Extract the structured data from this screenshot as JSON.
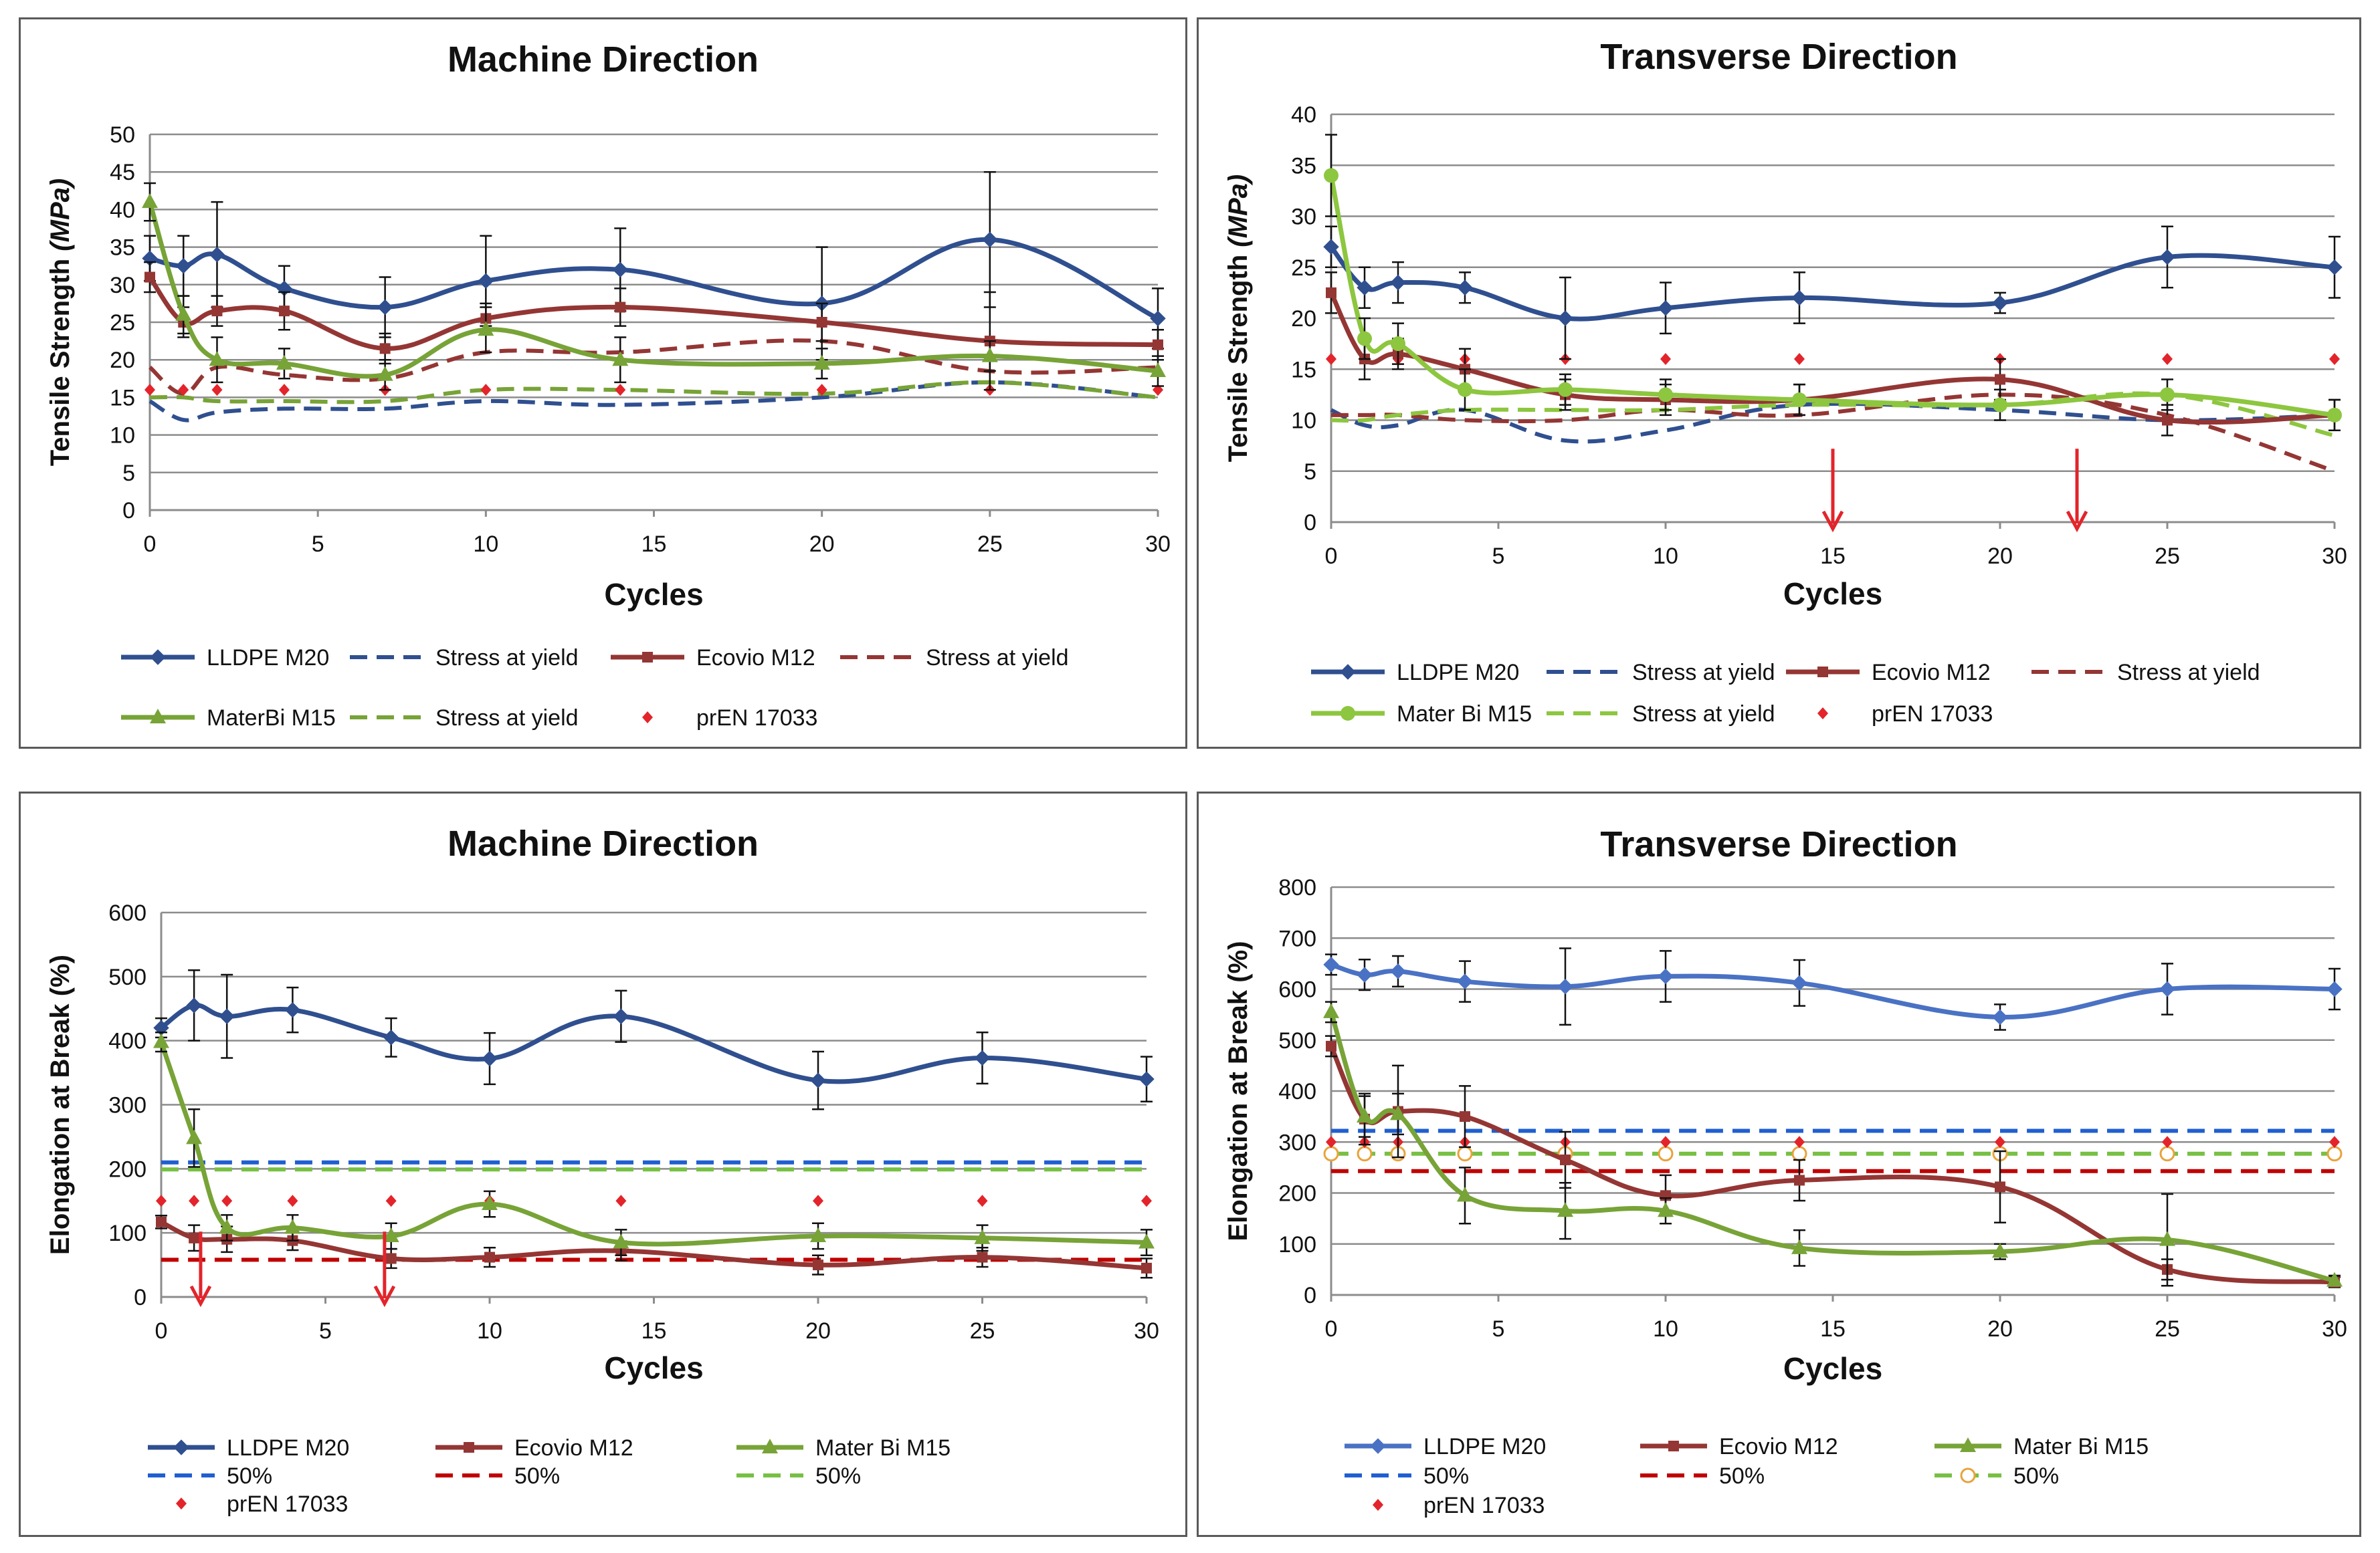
{
  "chart_data": [
    {
      "type": "line",
      "title": "Machine Direction",
      "xlabel": "Cycles",
      "ylabel": "Tensile Strength (MPa)",
      "ylabel_parts": [
        "Tensile Strength ",
        "(MPa)"
      ],
      "x": [
        0,
        1,
        2,
        4,
        7,
        10,
        14,
        20,
        25,
        30
      ],
      "xlim": [
        0,
        30
      ],
      "xticks": [
        "0",
        "5",
        "10",
        "15",
        "20",
        "25",
        "30"
      ],
      "ylim": [
        0,
        50
      ],
      "yticks": [
        "0",
        "5",
        "10",
        "15",
        "20",
        "25",
        "30",
        "35",
        "40",
        "45",
        "50"
      ],
      "grid": true,
      "series": [
        {
          "name": "LLDPE  M20",
          "color": "#2f4f8f",
          "style": "solid",
          "marker": "diamond",
          "values": [
            33.5,
            32.5,
            34,
            29.5,
            27,
            30.5,
            32,
            27.5,
            36,
            25.5
          ],
          "errors": [
            3,
            4,
            7,
            3,
            4,
            6,
            5.5,
            7.5,
            9,
            4
          ]
        },
        {
          "name": "Stress at yield",
          "color": "#2f4f8f",
          "style": "dashed",
          "marker": "none",
          "values": [
            14.5,
            12,
            13,
            13.5,
            13.5,
            14.5,
            14,
            15,
            17,
            15
          ]
        },
        {
          "name": "Ecovio M12",
          "color": "#943634",
          "style": "solid",
          "marker": "square",
          "values": [
            31,
            25,
            26.5,
            26.5,
            21.5,
            25.5,
            27,
            25,
            22.5,
            22
          ],
          "errors": [
            2,
            2,
            2,
            2.5,
            2,
            2,
            2.5,
            2.5,
            6.5,
            2
          ]
        },
        {
          "name": "Stress at yield",
          "color": "#943634",
          "style": "dashed",
          "marker": "none",
          "values": [
            19,
            15.5,
            19,
            18,
            17.5,
            21,
            21,
            22.5,
            18.5,
            19
          ]
        },
        {
          "name": "MaterBi M15",
          "color": "#77a337",
          "style": "solid",
          "marker": "triangle",
          "values": [
            41,
            26,
            20,
            19.5,
            18,
            24,
            20,
            19.5,
            20.5,
            18.5
          ],
          "errors": [
            2.5,
            2.5,
            3,
            2,
            2,
            3,
            3,
            2,
            2,
            2
          ]
        },
        {
          "name": "Stress at yield",
          "color": "#77a337",
          "style": "dashed",
          "marker": "none",
          "values": [
            15,
            15,
            14.5,
            14.5,
            14.5,
            16,
            16,
            15.5,
            17,
            15
          ]
        },
        {
          "name": "prEN 17033",
          "color": "#e3242b",
          "style": "points",
          "marker": "small-diamond",
          "values": [
            16,
            16,
            16,
            16,
            16,
            16,
            16,
            16,
            16,
            16
          ]
        }
      ],
      "arrows_at_x": [],
      "legend_rows": [
        [
          0,
          1,
          2,
          3
        ],
        [
          4,
          5,
          6
        ]
      ]
    },
    {
      "type": "line",
      "title": "Transverse Direction",
      "xlabel": "Cycles",
      "ylabel": "Tensile Strength (MPa)",
      "ylabel_parts": [
        "Tensile Strength ",
        "(MPa)"
      ],
      "x": [
        0,
        1,
        2,
        4,
        7,
        10,
        14,
        20,
        25,
        30
      ],
      "xlim": [
        0,
        30
      ],
      "xticks": [
        "0",
        "5",
        "10",
        "15",
        "20",
        "25",
        "30"
      ],
      "ylim": [
        0,
        40
      ],
      "yticks": [
        "0",
        "5",
        "10",
        "15",
        "20",
        "25",
        "30",
        "35",
        "40"
      ],
      "grid": true,
      "series": [
        {
          "name": "LLDPE  M20",
          "color": "#2f4f8f",
          "style": "solid",
          "marker": "diamond",
          "values": [
            27,
            23,
            23.5,
            23,
            20,
            21,
            22,
            21.5,
            26,
            25
          ],
          "errors": [
            2,
            2,
            2,
            1.5,
            4,
            2.5,
            2.5,
            1,
            3,
            3
          ]
        },
        {
          "name": "Stress at yield",
          "color": "#2f4f8f",
          "style": "dashed",
          "marker": "none",
          "values": [
            11,
            9.5,
            9.5,
            11,
            8,
            9,
            11.5,
            11,
            10,
            10.5
          ]
        },
        {
          "name": "Ecovio M12",
          "color": "#943634",
          "style": "solid",
          "marker": "square",
          "values": [
            22.5,
            16,
            16.5,
            15,
            12.5,
            12,
            12,
            14,
            10,
            10.5
          ],
          "errors": [
            2,
            2,
            1.5,
            2,
            1.5,
            1.5,
            1.5,
            2,
            1.5,
            1.5
          ]
        },
        {
          "name": "Stress at yield",
          "color": "#943634",
          "style": "dashed",
          "marker": "none",
          "values": [
            10.5,
            10.5,
            10.5,
            10,
            10,
            11,
            10.5,
            12.5,
            10.5,
            5
          ]
        },
        {
          "name": "Mater Bi M15",
          "color": "#8dc63f",
          "style": "solid",
          "marker": "circle",
          "values": [
            34,
            18,
            17.5,
            13,
            13,
            12.5,
            12,
            11.5,
            12.5,
            10.5
          ],
          "errors": [
            4,
            2,
            2,
            2,
            1.5,
            1.5,
            1.5,
            1.5,
            1.5,
            1.5
          ]
        },
        {
          "name": "Stress at yield",
          "color": "#8dc63f",
          "style": "dashed",
          "marker": "none",
          "values": [
            10,
            10,
            10.5,
            11,
            11,
            11,
            11.5,
            11.5,
            12.5,
            8.5
          ]
        },
        {
          "name": "prEN 17033",
          "color": "#e3242b",
          "style": "points",
          "marker": "small-diamond",
          "values": [
            16,
            16,
            16,
            16,
            16,
            16,
            16,
            16,
            16,
            16
          ]
        }
      ],
      "arrows_at_x": [
        15,
        22.3
      ],
      "legend_rows": [
        [
          0,
          1,
          2,
          3
        ],
        [
          4,
          5,
          6
        ]
      ]
    },
    {
      "type": "line",
      "title": "Machine Direction",
      "xlabel": "Cycles",
      "ylabel": "Elongation at Break (%)",
      "ylabel_parts": [
        "Elongation at Break (%)"
      ],
      "x": [
        0,
        1,
        2,
        4,
        7,
        10,
        14,
        20,
        25,
        30
      ],
      "xlim": [
        0,
        30
      ],
      "xticks": [
        "0",
        "5",
        "10",
        "15",
        "20",
        "25",
        "30"
      ],
      "ylim": [
        0,
        600
      ],
      "yticks": [
        "0",
        "100",
        "200",
        "300",
        "400",
        "500",
        "600"
      ],
      "grid": true,
      "series": [
        {
          "name": "LLDPE  M20",
          "color": "#2f4f8f",
          "style": "solid",
          "marker": "diamond",
          "values": [
            420,
            455,
            438,
            448,
            405,
            372,
            438,
            338,
            373,
            340
          ],
          "errors": [
            15,
            55,
            65,
            35,
            30,
            40,
            40,
            45,
            40,
            35
          ]
        },
        {
          "name": "Ecovio M12",
          "color": "#943634",
          "style": "solid",
          "marker": "square",
          "values": [
            117,
            92,
            90,
            88,
            60,
            62,
            72,
            50,
            62,
            45
          ],
          "errors": [
            10,
            20,
            20,
            15,
            15,
            15,
            15,
            15,
            15,
            15
          ]
        },
        {
          "name": "Mater Bi M15",
          "color": "#77a337",
          "style": "solid",
          "marker": "triangle",
          "values": [
            398,
            248,
            108,
            108,
            95,
            145,
            85,
            95,
            92,
            85
          ],
          "errors": [
            15,
            45,
            20,
            20,
            20,
            20,
            20,
            20,
            20,
            20
          ]
        },
        {
          "name": "50%",
          "color": "#1f5fd1",
          "style": "dashed",
          "marker": "none",
          "values": [
            210,
            210,
            210,
            210,
            210,
            210,
            210,
            210,
            210,
            210
          ]
        },
        {
          "name": "50%",
          "color": "#c00000",
          "style": "dashed",
          "marker": "none",
          "values": [
            58,
            58,
            58,
            58,
            58,
            58,
            58,
            58,
            58,
            58
          ]
        },
        {
          "name": "50%",
          "color": "#77c043",
          "style": "dashed",
          "marker": "none",
          "values": [
            199,
            199,
            199,
            199,
            199,
            199,
            199,
            199,
            199,
            199
          ]
        },
        {
          "name": "prEN 17033",
          "color": "#e3242b",
          "style": "points",
          "marker": "small-diamond",
          "values": [
            150,
            150,
            150,
            150,
            150,
            150,
            150,
            150,
            150,
            150
          ]
        }
      ],
      "arrows_at_x": [
        1.2,
        6.8
      ],
      "legend_rows": [
        [
          0,
          1,
          2
        ],
        [
          3,
          4,
          5
        ],
        [
          6
        ]
      ]
    },
    {
      "type": "line",
      "title": "Transverse Direction",
      "xlabel": "Cycles",
      "ylabel": "Elongation at Break (%)",
      "ylabel_parts": [
        "Elongation at Break (%)"
      ],
      "x": [
        0,
        1,
        2,
        4,
        7,
        10,
        14,
        20,
        25,
        30
      ],
      "xlim": [
        0,
        30
      ],
      "xticks": [
        "0",
        "5",
        "10",
        "15",
        "20",
        "25",
        "30"
      ],
      "ylim": [
        0,
        800
      ],
      "yticks": [
        "0",
        "100",
        "200",
        "300",
        "400",
        "500",
        "600",
        "700",
        "800"
      ],
      "grid": true,
      "series": [
        {
          "name": "LLDPE  M20",
          "color": "#4a72c4",
          "style": "solid",
          "marker": "diamond",
          "values": [
            648,
            628,
            635,
            615,
            605,
            625,
            612,
            545,
            600,
            600
          ],
          "errors": [
            20,
            30,
            30,
            40,
            75,
            50,
            45,
            25,
            50,
            40
          ]
        },
        {
          "name": "Ecovio M12",
          "color": "#943634",
          "style": "solid",
          "marker": "square",
          "values": [
            488,
            345,
            360,
            350,
            265,
            195,
            225,
            212,
            50,
            25
          ],
          "errors": [
            20,
            50,
            90,
            60,
            55,
            40,
            40,
            70,
            20,
            10
          ]
        },
        {
          "name": "Mater Bi M15",
          "color": "#77a337",
          "style": "solid",
          "marker": "triangle",
          "values": [
            555,
            350,
            355,
            195,
            165,
            165,
            92,
            85,
            108,
            28
          ],
          "errors": [
            20,
            40,
            40,
            55,
            55,
            25,
            35,
            15,
            90,
            10
          ]
        },
        {
          "name": "50%",
          "color": "#1f5fd1",
          "style": "dashed",
          "marker": "none",
          "values": [
            322,
            322,
            322,
            322,
            322,
            322,
            322,
            322,
            322,
            322
          ]
        },
        {
          "name": "50%",
          "color": "#c00000",
          "style": "dashed",
          "marker": "none",
          "values": [
            243,
            243,
            243,
            243,
            243,
            243,
            243,
            243,
            243,
            243
          ]
        },
        {
          "name": "50%",
          "color": "#77c043",
          "style": "dashed",
          "marker": "open-circle",
          "values": [
            277,
            277,
            277,
            277,
            277,
            277,
            277,
            277,
            277,
            277
          ]
        },
        {
          "name": "prEN 17033",
          "color": "#e3242b",
          "style": "points",
          "marker": "small-diamond",
          "values": [
            300,
            300,
            300,
            300,
            300,
            300,
            300,
            300,
            300,
            300
          ]
        }
      ],
      "arrows_at_x": [],
      "legend_rows": [
        [
          0,
          1,
          2
        ],
        [
          3,
          4,
          5
        ],
        [
          6
        ]
      ]
    }
  ]
}
